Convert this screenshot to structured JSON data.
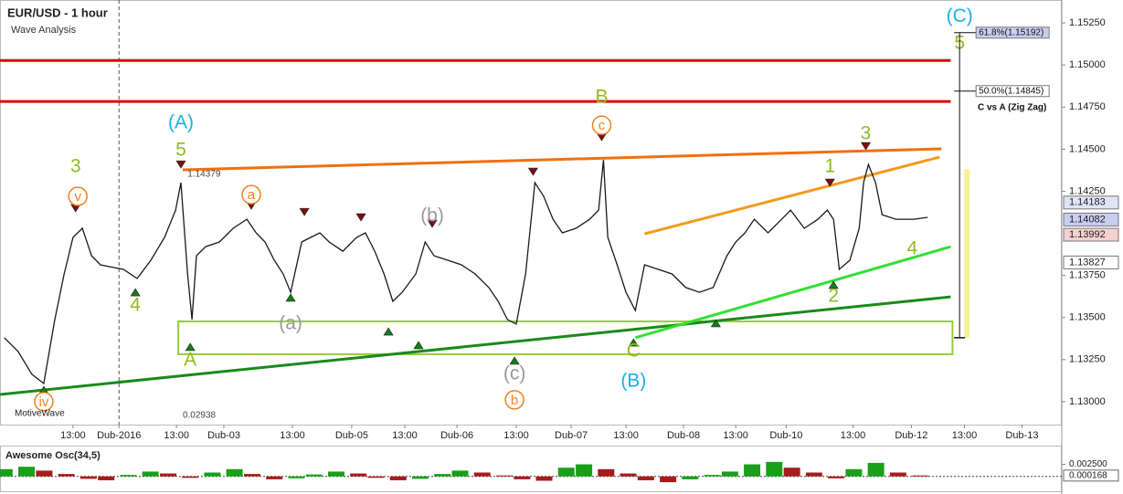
{
  "chart_data": [
    {
      "type": "line",
      "title": "EUR/USD - 1 hour",
      "subtitle": "Wave Analysis",
      "watermark": "MotiveWave",
      "color": "#1a1a1a",
      "x": [
        1,
        4.1,
        7.2,
        9.9,
        12.4,
        14.5,
        16.5,
        18.6,
        20.7,
        22.7,
        24.8,
        27.9,
        31.0,
        34.1,
        37.2,
        39.7,
        40.9,
        42.4,
        43.4,
        44.4,
        46.5,
        49.6,
        52.7,
        55.8,
        57.9,
        59.9,
        62.0,
        64.0,
        65.7,
        68.2,
        70.2,
        72.3,
        74.4,
        77.5,
        80.6,
        82.6,
        84.7,
        86.8,
        88.8,
        90.9,
        94.0,
        96.1,
        98.1,
        101.2,
        104.3,
        107.4,
        110.5,
        112.6,
        114.7,
        116.7,
        118.8,
        120.9,
        122.9,
        125.0,
        127.1,
        130.2,
        133.3,
        135.3,
        136.4,
        137.4,
        139.5,
        141.5,
        143.6,
        145.7,
        148.8,
        151.9,
        155.0,
        158.1,
        161.2,
        164.3,
        166.3,
        168.4,
        170.5,
        173.6,
        176.7,
        178.7,
        181.8,
        184.9,
        187.0,
        188.4,
        189.7,
        192.1,
        194.2,
        195.2,
        196.3,
        197.9,
        199.4,
        202.5,
        206.6,
        209.7
      ],
      "values": [
        1.1338,
        1.13298,
        1.13163,
        1.13108,
        1.13488,
        1.13759,
        1.13976,
        1.1403,
        1.13867,
        1.13813,
        1.13802,
        1.13786,
        1.13732,
        1.1384,
        1.13976,
        1.14138,
        1.14301,
        1.13759,
        1.13488,
        1.13867,
        1.13921,
        1.13949,
        1.1403,
        1.14084,
        1.14003,
        1.13949,
        1.1384,
        1.13759,
        1.1365,
        1.13949,
        1.13976,
        1.14003,
        1.13949,
        1.13894,
        1.13976,
        1.14003,
        1.13894,
        1.13759,
        1.13596,
        1.1365,
        1.13759,
        1.13949,
        1.13867,
        1.1384,
        1.13813,
        1.13759,
        1.13678,
        1.13596,
        1.13488,
        1.13461,
        1.13759,
        1.14301,
        1.1422,
        1.14084,
        1.14003,
        1.1403,
        1.14084,
        1.14138,
        1.14436,
        1.13976,
        1.13813,
        1.1365,
        1.13542,
        1.13813,
        1.13786,
        1.13759,
        1.13678,
        1.1365,
        1.13678,
        1.13867,
        1.13949,
        1.14003,
        1.14084,
        1.14003,
        1.14084,
        1.14138,
        1.1403,
        1.14084,
        1.14138,
        1.14084,
        1.13786,
        1.1384,
        1.1403,
        1.14301,
        1.14409,
        1.14301,
        1.14111,
        1.14084,
        1.14084,
        1.14095
      ],
      "xlim": [
        0,
        240
      ],
      "ylim": [
        1.12864,
        1.15386
      ],
      "xticks": [
        {
          "value": 16.5,
          "label": "13:00"
        },
        {
          "value": 26.9,
          "label": "Dub-2016"
        },
        {
          "value": 39.9,
          "label": "13:00"
        },
        {
          "value": 50.6,
          "label": "Dub-03"
        },
        {
          "value": 66.1,
          "label": "13:00"
        },
        {
          "value": 79.5,
          "label": "Dub-05"
        },
        {
          "value": 91.5,
          "label": "13:00"
        },
        {
          "value": 103.3,
          "label": "Dub-06"
        },
        {
          "value": 116.7,
          "label": "13:00"
        },
        {
          "value": 129.1,
          "label": "Dub-07"
        },
        {
          "value": 141.5,
          "label": "13:00"
        },
        {
          "value": 154.5,
          "label": "Dub-08"
        },
        {
          "value": 166.3,
          "label": "13:00"
        },
        {
          "value": 177.7,
          "label": "Dub-10"
        },
        {
          "value": 192.8,
          "label": "13:00"
        },
        {
          "value": 206.0,
          "label": "Dub-12"
        },
        {
          "value": 218.0,
          "label": "13:00"
        },
        {
          "value": 231.0,
          "label": "Dub-13"
        }
      ],
      "yticks": [
        {
          "value": 1.1525,
          "label": "1.15250"
        },
        {
          "value": 1.15,
          "label": "1.15000"
        },
        {
          "value": 1.1475,
          "label": "1.14750"
        },
        {
          "value": 1.145,
          "label": "1.14500"
        },
        {
          "value": 1.1425,
          "label": "1.14250"
        },
        {
          "value": 1.1375,
          "label": "1.13750"
        },
        {
          "value": 1.135,
          "label": "1.13500"
        },
        {
          "value": 1.1325,
          "label": "1.13250"
        },
        {
          "value": 1.13,
          "label": "1.13000"
        }
      ],
      "price_markers": [
        {
          "value": 1.14183,
          "label": "1.14183",
          "color": "#dfe4f6"
        },
        {
          "value": 1.14082,
          "label": "1.14082",
          "color": "#c9cdf2"
        },
        {
          "value": 1.13992,
          "label": "1.13992",
          "color": "#f4d0d0"
        },
        {
          "value": 1.13827,
          "label": "1.13827",
          "color": "#ffffff"
        }
      ],
      "hlines": [
        {
          "y": 1.15027,
          "color": "#e00000"
        },
        {
          "y": 1.14783,
          "color": "#e00000"
        }
      ],
      "trendlines": [
        {
          "x": [
            41.3,
            212.8
          ],
          "y": [
            1.14377,
            1.14502
          ],
          "color": "#f07010"
        },
        {
          "x": [
            145.7,
            212.4
          ],
          "y": [
            1.13997,
            1.14453
          ],
          "color": "#f49a1c"
        },
        {
          "x": [
            0,
            214.9
          ],
          "y": [
            1.13043,
            1.13623
          ],
          "color": "#1a8a1a"
        },
        {
          "x": [
            143.6,
            214.9
          ],
          "y": [
            1.1338,
            1.13921
          ],
          "color": "#33e033"
        }
      ],
      "box": {
        "x": [
          40.3,
          215.3
        ],
        "y": [
          1.13282,
          1.13477
        ],
        "color": "#9acd32"
      },
      "pivots": [
        {
          "x": 40.9,
          "y": 1.14409,
          "dir": "down"
        },
        {
          "x": 43.0,
          "y": 1.13325,
          "dir": "up"
        },
        {
          "x": 17.1,
          "y": 1.14149,
          "dir": "down"
        },
        {
          "x": 30.6,
          "y": 1.1365,
          "dir": "up"
        },
        {
          "x": 9.9,
          "y": 1.1307,
          "dir": "up"
        },
        {
          "x": 56.8,
          "y": 1.14165,
          "dir": "down"
        },
        {
          "x": 65.7,
          "y": 1.13618,
          "dir": "up"
        },
        {
          "x": 68.8,
          "y": 1.14127,
          "dir": "down"
        },
        {
          "x": 81.6,
          "y": 1.14095,
          "dir": "down"
        },
        {
          "x": 87.8,
          "y": 1.13417,
          "dir": "up"
        },
        {
          "x": 94.6,
          "y": 1.13336,
          "dir": "up"
        },
        {
          "x": 97.7,
          "y": 1.14057,
          "dir": "down"
        },
        {
          "x": 116.3,
          "y": 1.13244,
          "dir": "up"
        },
        {
          "x": 120.5,
          "y": 1.14366,
          "dir": "down"
        },
        {
          "x": 136.0,
          "y": 1.14572,
          "dir": "down"
        },
        {
          "x": 143.2,
          "y": 1.13352,
          "dir": "up"
        },
        {
          "x": 161.8,
          "y": 1.13466,
          "dir": "up"
        },
        {
          "x": 187.6,
          "y": 1.14301,
          "dir": "down"
        },
        {
          "x": 188.4,
          "y": 1.13694,
          "dir": "up"
        },
        {
          "x": 195.7,
          "y": 1.14518,
          "dir": "down"
        }
      ],
      "annotations": [
        {
          "text": "(A)",
          "x": 40.9,
          "y": 1.14653,
          "color": "#1ab0e8",
          "style": "plain"
        },
        {
          "text": "5",
          "x": 40.9,
          "y": 1.14491,
          "color": "#8fbc1e",
          "style": "plain"
        },
        {
          "text": "A",
          "x": 43.0,
          "y": 1.13244,
          "color": "#8fbc1e",
          "style": "plain"
        },
        {
          "text": "3",
          "x": 17.1,
          "y": 1.14393,
          "color": "#8fbc1e",
          "style": "plain"
        },
        {
          "text": "v",
          "x": 17.6,
          "y": 1.1422,
          "color": "#f0821e",
          "style": "circle"
        },
        {
          "text": "4",
          "x": 30.6,
          "y": 1.13569,
          "color": "#8fbc1e",
          "style": "plain"
        },
        {
          "text": "iv",
          "x": 9.9,
          "y": 1.13,
          "color": "#f0821e",
          "style": "circle"
        },
        {
          "text": "a",
          "x": 56.8,
          "y": 1.1423,
          "color": "#f0821e",
          "style": "circle"
        },
        {
          "text": "(a)",
          "x": 65.7,
          "y": 1.13461,
          "color": "#999999",
          "style": "plain"
        },
        {
          "text": "(b)",
          "x": 97.7,
          "y": 1.141,
          "color": "#999999",
          "style": "plain"
        },
        {
          "text": "(c)",
          "x": 116.3,
          "y": 1.13163,
          "color": "#999999",
          "style": "plain"
        },
        {
          "text": "b",
          "x": 116.3,
          "y": 1.13011,
          "color": "#f0821e",
          "style": "circle"
        },
        {
          "text": "B",
          "x": 136.0,
          "y": 1.14805,
          "color": "#8fbc1e",
          "style": "plain"
        },
        {
          "text": "c",
          "x": 136.0,
          "y": 1.14642,
          "color": "#f0821e",
          "style": "circle"
        },
        {
          "text": "C",
          "x": 143.2,
          "y": 1.13298,
          "color": "#8fbc1e",
          "style": "plain"
        },
        {
          "text": "(B)",
          "x": 143.2,
          "y": 1.13119,
          "color": "#1ab0e8",
          "style": "plain"
        },
        {
          "text": "1",
          "x": 187.6,
          "y": 1.14393,
          "color": "#8fbc1e",
          "style": "plain"
        },
        {
          "text": "2",
          "x": 188.4,
          "y": 1.13623,
          "color": "#8fbc1e",
          "style": "plain"
        },
        {
          "text": "3",
          "x": 195.7,
          "y": 1.14588,
          "color": "#8fbc1e",
          "style": "plain"
        },
        {
          "text": "4",
          "x": 206.2,
          "y": 1.13905,
          "color": "#8fbc1e",
          "style": "plain"
        },
        {
          "text": "(C)",
          "x": 216.9,
          "y": 1.15287,
          "color": "#1ab0e8",
          "style": "plain"
        },
        {
          "text": "5",
          "x": 216.9,
          "y": 1.15125,
          "color": "#8fbc1e",
          "style": "plain"
        },
        {
          "text": "1.14379",
          "x": 42.4,
          "y": 1.14352,
          "color": "#444444",
          "style": "tag"
        },
        {
          "text": "0.02938",
          "x": 41.3,
          "y": 1.12919,
          "color": "#444444",
          "style": "tag"
        }
      ],
      "fib": {
        "x": 216.9,
        "start": 1.1338,
        "levels": [
          {
            "value": 1.15192,
            "label": "61.8%(1.15192)",
            "color": "#c9cdf2"
          },
          {
            "value": 1.14845,
            "label": "50.0%(1.14845)",
            "color": "#ffffff"
          }
        ],
        "caption": "C vs A (Zig Zag)",
        "zone": [
          1.1338,
          1.14382
        ],
        "zone_color": "#f6f29a"
      }
    },
    {
      "type": "bar",
      "title": "Awesome Osc(34,5)",
      "x": [
        1,
        6,
        10,
        15,
        20,
        24,
        29,
        34,
        38,
        43,
        48,
        53,
        57,
        62,
        67,
        71,
        76,
        81,
        85,
        90,
        95,
        100,
        104,
        109,
        114,
        118,
        123,
        128,
        132,
        137,
        142,
        146,
        151,
        156,
        161,
        165,
        170,
        175,
        179,
        184,
        189,
        193,
        198,
        203,
        208
      ],
      "values": [
        0.0015,
        0.002,
        0.0012,
        0.0005,
        -0.0005,
        -0.0008,
        0.0003,
        0.001,
        0.0006,
        -0.0003,
        0.0008,
        0.0015,
        0.0005,
        -0.0006,
        -0.0004,
        0.0004,
        0.001,
        0.0006,
        -0.0003,
        -0.0008,
        -0.0005,
        0.0005,
        0.0012,
        0.0008,
        0.0002,
        -0.0006,
        -0.0009,
        0.0018,
        0.0025,
        0.0015,
        0.0006,
        -0.0008,
        -0.0012,
        -0.0006,
        0.0003,
        0.001,
        0.0025,
        0.003,
        0.0018,
        0.0008,
        -0.0004,
        0.0015,
        0.0028,
        0.0008,
        0.0002
      ],
      "up_color": "#19a019",
      "down_color": "#a81c1c",
      "xlim": [
        0,
        240
      ],
      "ylim": [
        -0.0027,
        0.006
      ],
      "yticks": [
        {
          "value": 0.0025,
          "label": "0.002500"
        }
      ],
      "marker": {
        "value": 0.000168,
        "label": "0.000168"
      }
    }
  ]
}
